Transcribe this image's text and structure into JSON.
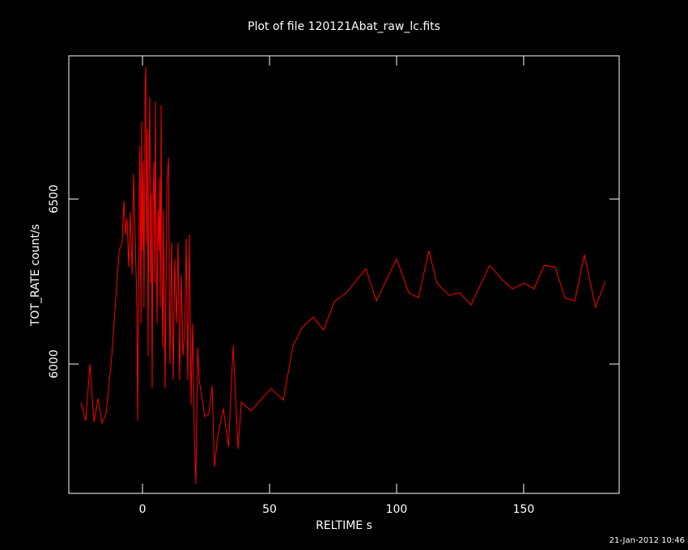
{
  "chart_data": {
    "type": "line",
    "title": "Plot of file 120121Abat_raw_lc.fits",
    "x_label": "RELTIME   s",
    "y_label": "TOT_RATE   count/s",
    "x": [
      -24.2,
      -22.3,
      -20.7,
      -19.1,
      -17.5,
      -15.9,
      -14.3,
      -12.1,
      -9.2,
      -8,
      -7.3,
      -6.7,
      -6.1,
      -5.4,
      -4.8,
      -4.1,
      -3.5,
      -2.9,
      -2.2,
      -1.9,
      -1.3,
      -1.0,
      -0.6,
      -0.3,
      0,
      0.3,
      0.6,
      1.0,
      1.3,
      1.6,
      1.9,
      2.2,
      2.5,
      2.9,
      3.2,
      3.5,
      3.8,
      4.1,
      4.5,
      4.8,
      5.1,
      5.4,
      5.7,
      6.1,
      6.4,
      6.7,
      7.0,
      7.3,
      7.6,
      8.0,
      8.3,
      8.6,
      8.9,
      9.6,
      10.2,
      10.8,
      11.5,
      12.1,
      12.7,
      13.4,
      14.0,
      14.6,
      15.3,
      15.9,
      16.6,
      17.2,
      17.8,
      18.5,
      19.1,
      19.7,
      20.4,
      21.0,
      21.7,
      22.3,
      24.5,
      26.1,
      27.4,
      28.3,
      29.6,
      31.8,
      33.8,
      35.7,
      37.6,
      38.9,
      42.7,
      50.6,
      55.4,
      59.2,
      62.7,
      67.2,
      71.3,
      75.5,
      80.3,
      87.9,
      92.0,
      100.0,
      104.8,
      108.6,
      112.7,
      115.9,
      120.7,
      124.8,
      129.3,
      136.6,
      141.4,
      145.5,
      150.3,
      154.1,
      158.0,
      162.4,
      166.2,
      170.1,
      173.9,
      178.3,
      182.2
    ],
    "values": [
      5885,
      5828,
      6000,
      5824,
      5895,
      5821,
      5850,
      6025,
      6343,
      6368,
      6495,
      6392,
      6441,
      6294,
      6461,
      6270,
      6576,
      6392,
      6172,
      5828,
      6490,
      6662,
      6123,
      6735,
      6343,
      6613,
      6172,
      6833,
      6902,
      6368,
      6711,
      6025,
      6564,
      6809,
      6245,
      6515,
      5926,
      6466,
      6613,
      6245,
      6797,
      6368,
      6123,
      6466,
      6343,
      6564,
      6172,
      6784,
      6294,
      6049,
      6466,
      6221,
      5926,
      6539,
      6625,
      6000,
      6368,
      5951,
      6319,
      6123,
      6368,
      5951,
      6270,
      6025,
      6098,
      6380,
      5951,
      6392,
      5877,
      6123,
      5779,
      5637,
      6049,
      5951,
      5841,
      5848,
      5934,
      5689,
      5779,
      5865,
      5750,
      6056,
      5743,
      5885,
      5858,
      5926,
      5890,
      6054,
      6110,
      6142,
      6103,
      6189,
      6216,
      6289,
      6191,
      6319,
      6216,
      6201,
      6343,
      6245,
      6208,
      6216,
      6179,
      6299,
      6257,
      6228,
      6245,
      6228,
      6299,
      6294,
      6201,
      6191,
      6331,
      6172,
      6252
    ],
    "color": "#ff0000",
    "xlim": [
      -29,
      187.6
    ],
    "ylim": [
      5608,
      6934
    ],
    "xticks": [
      0,
      50,
      100,
      150
    ],
    "yticks": [
      6000,
      6500
    ]
  },
  "timestamp": "21-Jan-2012 10:46"
}
